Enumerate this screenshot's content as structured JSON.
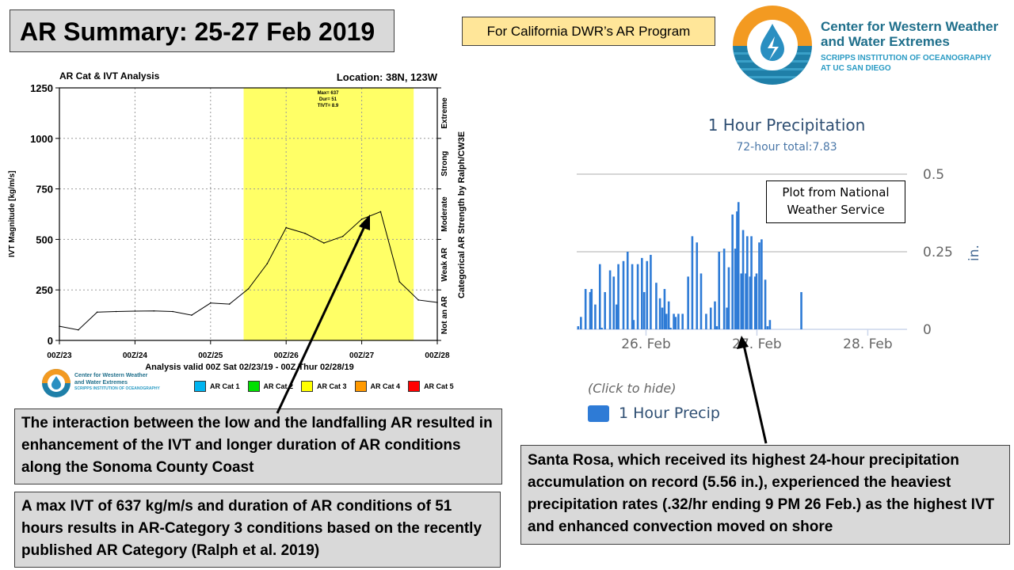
{
  "slide": {
    "title": "AR Summary: 25-27 Feb 2019",
    "program_label": "For California DWR’s AR Program",
    "logo": {
      "line1": "Center for Western Weather",
      "line2": "and Water Extremes",
      "line3": "SCRIPPS INSTITUTION OF OCEANOGRAPHY",
      "line4": "AT UC SAN DIEGO"
    },
    "notes": {
      "interaction": "The interaction between the low and the landfalling AR resulted in enhancement of the IVT and longer duration of AR conditions along the Sonoma County Coast",
      "max_ivt": "A max IVT of 637 kg/m/s and duration of AR conditions of 51 hours results in AR-Category 3 conditions based on the recently published AR Category (Ralph et al. 2019)",
      "santa_rosa": "Santa Rosa, which received its highest 24-hour precipitation accumulation on record (5.56 in.), experienced the heaviest precipitation rates (.32/hr ending 9 PM 26 Feb.) as the highest IVT and enhanced convection moved on shore"
    },
    "nws_note": "Plot from National Weather Service",
    "colors": {
      "ar_cat3_band": "#ffff66",
      "precip_bar": "#2e7bd6",
      "orange": "#f39a21",
      "blue": "#1f7fa8"
    }
  },
  "chart_data": [
    {
      "type": "line",
      "title": "AR Cat & IVT Analysis",
      "location": "Location: 38N, 123W",
      "ylabel": "IVT Magnitude [kg/m/s]",
      "xlabel": "Analysis valid 00Z Sat 02/23/19 - 00Z Thur 02/28/19",
      "right_label": "Categorical AR Strength by Ralph/CW3E",
      "ylim": [
        0,
        1250
      ],
      "yticks": [
        "0",
        "250",
        "500",
        "750",
        "1000",
        "1250"
      ],
      "xlim_hours": [
        0,
        120
      ],
      "xticks": [
        "00Z/23",
        "00Z/24",
        "00Z/25",
        "00Z/26",
        "00Z/27",
        "00Z/28"
      ],
      "categories_right": [
        "Not an AR",
        "Weak AR",
        "Moderate",
        "Strong",
        "Extreme"
      ],
      "annotation": [
        "Max= 637",
        "Dur= 51",
        "TIVT= 8.9"
      ],
      "ar_cat3_period_hours": [
        58.5,
        112.5
      ],
      "grid": true,
      "series": [
        {
          "name": "IVT",
          "x_hours": [
            0,
            6,
            12,
            18,
            24,
            30,
            36,
            42,
            48,
            54,
            60,
            66,
            72,
            78,
            84,
            90,
            96,
            102,
            108,
            114,
            120
          ],
          "values": [
            70,
            52,
            140,
            143,
            145,
            146,
            143,
            125,
            185,
            180,
            255,
            380,
            558,
            530,
            482,
            515,
            600,
            637,
            290,
            200,
            188
          ]
        }
      ],
      "legend": [
        "AR Cat 1",
        "AR Cat 2",
        "AR Cat 3",
        "AR Cat 4",
        "AR Cat 5"
      ],
      "legend_colors": [
        "#00b4f0",
        "#00e000",
        "#ffff00",
        "#ff9900",
        "#ff0000"
      ]
    },
    {
      "type": "bar",
      "title": "1 Hour Precipitation",
      "subtitle": "72-hour total:7.83",
      "ylabel": "in.",
      "ylim": [
        0,
        0.5
      ],
      "yticks": [
        "0",
        "0.25",
        "0.5"
      ],
      "xlim_hours_from_00Z_25Feb": [
        9,
        80.5
      ],
      "xticks": [
        {
          "label": "26. Feb",
          "hour": 24
        },
        {
          "label": "27. Feb",
          "hour": 48
        },
        {
          "label": "28. Feb",
          "hour": 72
        }
      ],
      "legend_hint": "(Click to hide)",
      "legend": "1 Hour Precip",
      "x_hours": [
        9.3,
        9.9,
        10.9,
        11.9,
        12.2,
        13.0,
        14.0,
        14.4,
        15.1,
        16.2,
        17.0,
        17.6,
        18.0,
        19.1,
        20.0,
        21.0,
        21.3,
        22.2,
        23.1,
        23.6,
        24.2,
        25.0,
        26.2,
        27.0,
        27.5,
        28.0,
        28.4,
        28.9,
        29.3,
        30.0,
        30.4,
        31.0,
        31.9,
        33.1,
        34.0,
        35.0,
        35.9,
        37.0,
        38.0,
        38.9,
        39.3,
        39.8,
        40.9,
        41.5,
        41.9,
        42.7,
        43.3,
        43.7,
        44.0,
        44.6,
        45.0,
        45.6,
        45.9,
        46.5,
        46.8,
        47.6,
        47.9,
        48.5,
        49.0,
        49.8,
        50.3,
        50.8,
        57.6
      ],
      "values": [
        0.01,
        0.04,
        0.13,
        0.12,
        0.13,
        0.08,
        0.21,
        0.005,
        0.12,
        0.19,
        0.17,
        0.08,
        0.21,
        0.22,
        0.25,
        0.21,
        0.03,
        0.21,
        0.23,
        0.12,
        0.22,
        0.24,
        0.15,
        0.1,
        0.07,
        0.13,
        0.05,
        0.09,
        0.005,
        0.05,
        0.04,
        0.05,
        0.05,
        0.17,
        0.3,
        0.28,
        0.18,
        0.05,
        0.07,
        0.09,
        0.01,
        0.25,
        0.26,
        0.07,
        0.2,
        0.37,
        0.26,
        0.38,
        0.41,
        0.18,
        0.32,
        0.18,
        0.3,
        0.17,
        0.3,
        0.17,
        0.18,
        0.28,
        0.29,
        0.16,
        0.01,
        0.03,
        0.12
      ]
    }
  ]
}
